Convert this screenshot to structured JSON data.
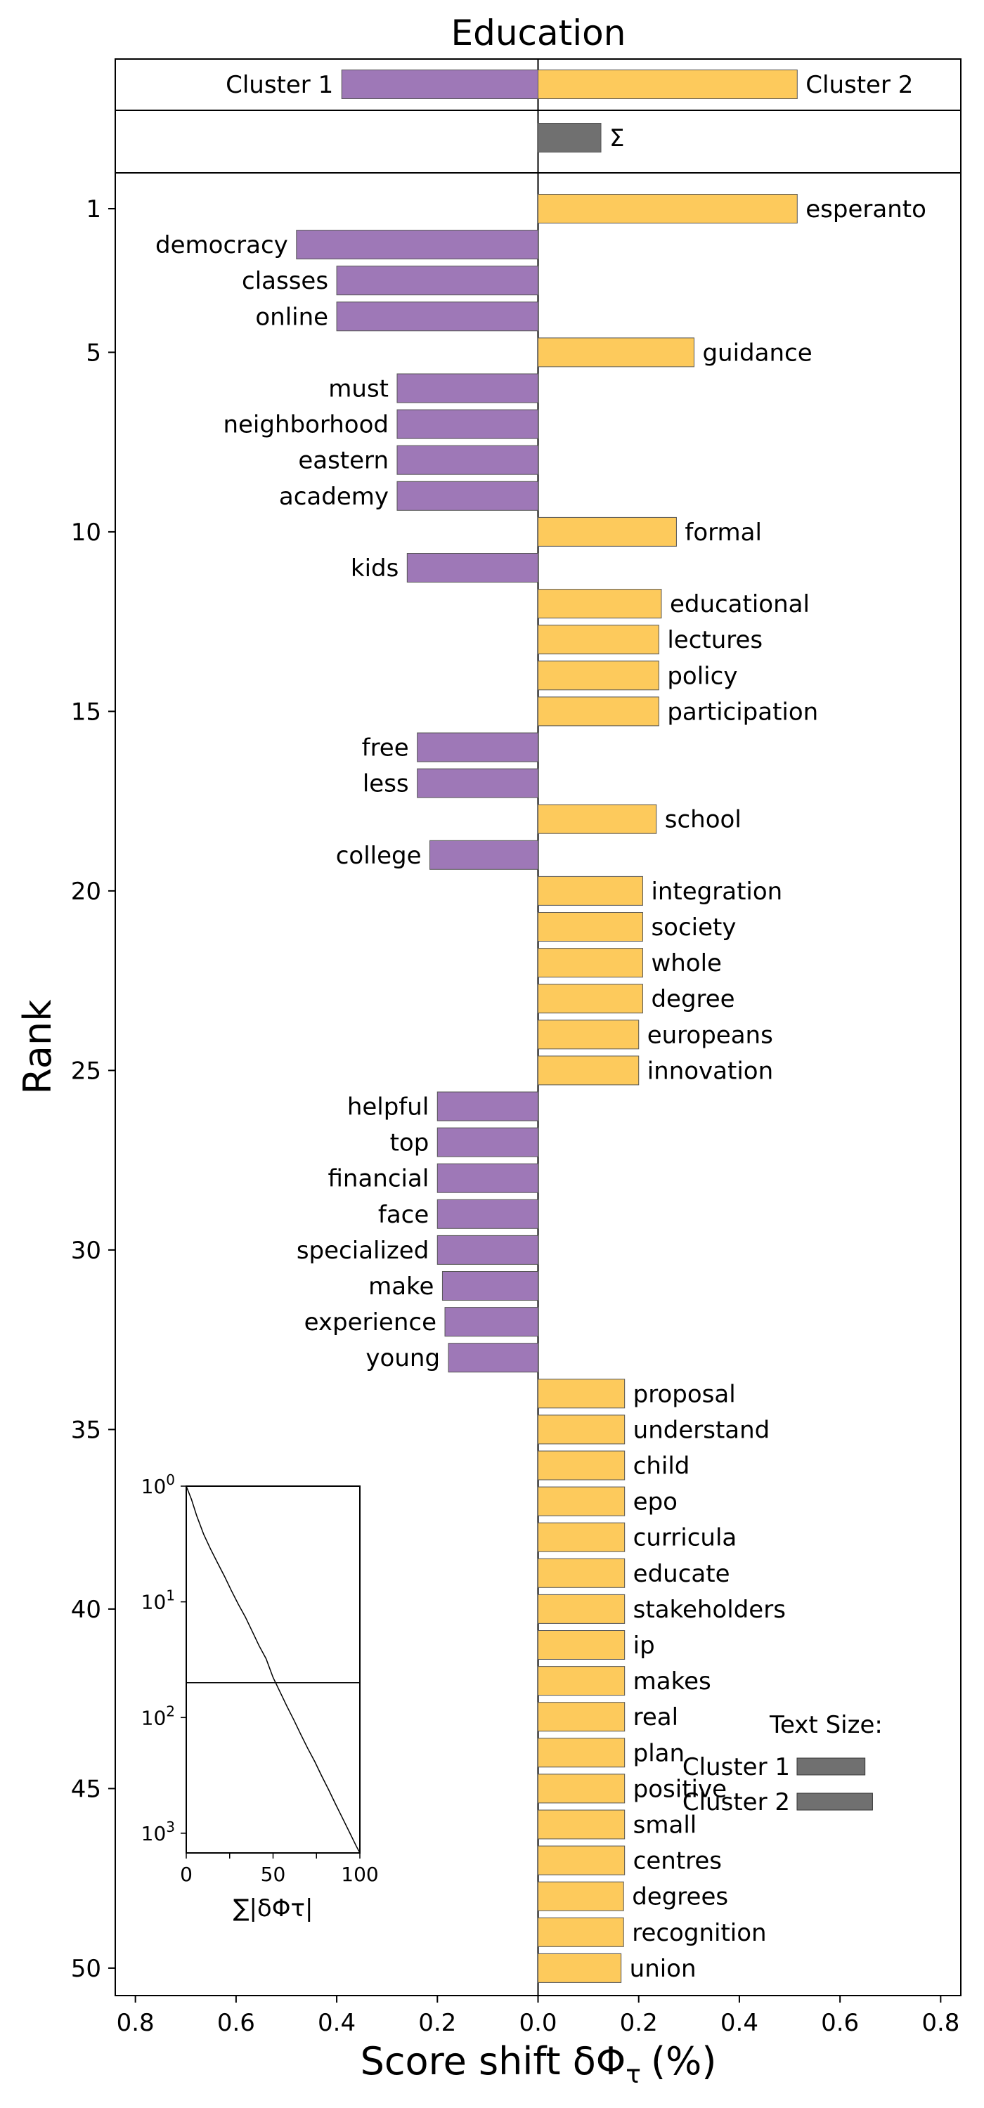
{
  "chart_data": {
    "type": "bar",
    "title": "Education",
    "xlabel": "Score shift δΦ",
    "xlabel_subscript": "τ",
    "xlabel_unit": "(%)",
    "ylabel": "Rank",
    "xlim": [
      -0.84,
      0.84
    ],
    "xticks": [
      -0.8,
      -0.6,
      -0.4,
      -0.2,
      0.0,
      0.2,
      0.4,
      0.6,
      0.8
    ],
    "xtick_labels": [
      "0.8",
      "0.6",
      "0.4",
      "0.2",
      "0.0",
      "0.2",
      "0.4",
      "0.6",
      "0.8"
    ],
    "yticks": [
      1,
      5,
      10,
      15,
      20,
      25,
      30,
      35,
      40,
      45,
      50
    ],
    "colors": {
      "cluster1": "#9e78b7",
      "cluster2": "#fdca5c",
      "sum": "#707070",
      "edge": "#555555"
    },
    "totals": {
      "cluster1_label": "Cluster 1",
      "cluster1_value": -0.39,
      "cluster2_label": "Cluster 2",
      "cluster2_value": 0.515,
      "sum_label": "Σ",
      "sum_value": 0.125
    },
    "words": [
      {
        "rank": 1,
        "word": "esperanto",
        "value": 0.515
      },
      {
        "rank": 2,
        "word": "democracy",
        "value": -0.48
      },
      {
        "rank": 3,
        "word": "classes",
        "value": -0.4
      },
      {
        "rank": 4,
        "word": "online",
        "value": -0.4
      },
      {
        "rank": 5,
        "word": "guidance",
        "value": 0.31
      },
      {
        "rank": 6,
        "word": "must",
        "value": -0.28
      },
      {
        "rank": 7,
        "word": "neighborhood",
        "value": -0.28
      },
      {
        "rank": 8,
        "word": "eastern",
        "value": -0.28
      },
      {
        "rank": 9,
        "word": "academy",
        "value": -0.28
      },
      {
        "rank": 10,
        "word": "formal",
        "value": 0.275
      },
      {
        "rank": 11,
        "word": "kids",
        "value": -0.26
      },
      {
        "rank": 12,
        "word": "educational",
        "value": 0.245
      },
      {
        "rank": 13,
        "word": "lectures",
        "value": 0.24
      },
      {
        "rank": 14,
        "word": "policy",
        "value": 0.24
      },
      {
        "rank": 15,
        "word": "participation",
        "value": 0.24
      },
      {
        "rank": 16,
        "word": "free",
        "value": -0.24
      },
      {
        "rank": 17,
        "word": "less",
        "value": -0.24
      },
      {
        "rank": 18,
        "word": "school",
        "value": 0.235
      },
      {
        "rank": 19,
        "word": "college",
        "value": -0.215
      },
      {
        "rank": 20,
        "word": "integration",
        "value": 0.208
      },
      {
        "rank": 21,
        "word": "society",
        "value": 0.208
      },
      {
        "rank": 22,
        "word": "whole",
        "value": 0.208
      },
      {
        "rank": 23,
        "word": "degree",
        "value": 0.208
      },
      {
        "rank": 24,
        "word": "europeans",
        "value": 0.2
      },
      {
        "rank": 25,
        "word": "innovation",
        "value": 0.2
      },
      {
        "rank": 26,
        "word": "helpful",
        "value": -0.2
      },
      {
        "rank": 27,
        "word": "top",
        "value": -0.2
      },
      {
        "rank": 28,
        "word": "financial",
        "value": -0.2
      },
      {
        "rank": 29,
        "word": "face",
        "value": -0.2
      },
      {
        "rank": 30,
        "word": "specialized",
        "value": -0.2
      },
      {
        "rank": 31,
        "word": "make",
        "value": -0.19
      },
      {
        "rank": 32,
        "word": "experience",
        "value": -0.185
      },
      {
        "rank": 33,
        "word": "young",
        "value": -0.178
      },
      {
        "rank": 34,
        "word": "proposal",
        "value": 0.172
      },
      {
        "rank": 35,
        "word": "understand",
        "value": 0.172
      },
      {
        "rank": 36,
        "word": "child",
        "value": 0.172
      },
      {
        "rank": 37,
        "word": "epo",
        "value": 0.172
      },
      {
        "rank": 38,
        "word": "curricula",
        "value": 0.172
      },
      {
        "rank": 39,
        "word": "educate",
        "value": 0.172
      },
      {
        "rank": 40,
        "word": "stakeholders",
        "value": 0.172
      },
      {
        "rank": 41,
        "word": "ip",
        "value": 0.172
      },
      {
        "rank": 42,
        "word": "makes",
        "value": 0.172
      },
      {
        "rank": 43,
        "word": "real",
        "value": 0.172
      },
      {
        "rank": 44,
        "word": "plan",
        "value": 0.172
      },
      {
        "rank": 45,
        "word": "positive",
        "value": 0.172
      },
      {
        "rank": 46,
        "word": "small",
        "value": 0.172
      },
      {
        "rank": 47,
        "word": "centres",
        "value": 0.172
      },
      {
        "rank": 48,
        "word": "degrees",
        "value": 0.17
      },
      {
        "rank": 49,
        "word": "recognition",
        "value": 0.17
      },
      {
        "rank": 50,
        "word": "union",
        "value": 0.165
      }
    ],
    "text_size_legend": {
      "title": "Text Size:",
      "items": [
        {
          "label": "Cluster 1",
          "value": 0.135
        },
        {
          "label": "Cluster 2",
          "value": 0.15
        }
      ]
    },
    "inset": {
      "xlabel": "∑|δΦτ|",
      "xticks": [
        0,
        25,
        50,
        75,
        100
      ],
      "xtick_labels": [
        "0",
        "",
        "50",
        "",
        "100"
      ],
      "ytick_labels": [
        "10",
        "10",
        "10",
        "10"
      ],
      "ytick_exponents": [
        "0",
        "1",
        "2",
        "3"
      ],
      "yscale": "log",
      "reference_rank": 50,
      "curve": [
        [
          0,
          1
        ],
        [
          3,
          1.3
        ],
        [
          6,
          1.8
        ],
        [
          10,
          2.6
        ],
        [
          14,
          3.5
        ],
        [
          18,
          4.6
        ],
        [
          22,
          6
        ],
        [
          26,
          8
        ],
        [
          30,
          10.5
        ],
        [
          34,
          13.5
        ],
        [
          38,
          18
        ],
        [
          42,
          24
        ],
        [
          46,
          31
        ],
        [
          50,
          45
        ],
        [
          54,
          60
        ],
        [
          58,
          80
        ],
        [
          62,
          105
        ],
        [
          66,
          140
        ],
        [
          70,
          185
        ],
        [
          74,
          240
        ],
        [
          78,
          320
        ],
        [
          82,
          420
        ],
        [
          86,
          560
        ],
        [
          90,
          740
        ],
        [
          94,
          980
        ],
        [
          98,
          1300
        ],
        [
          100,
          1480
        ]
      ]
    }
  }
}
